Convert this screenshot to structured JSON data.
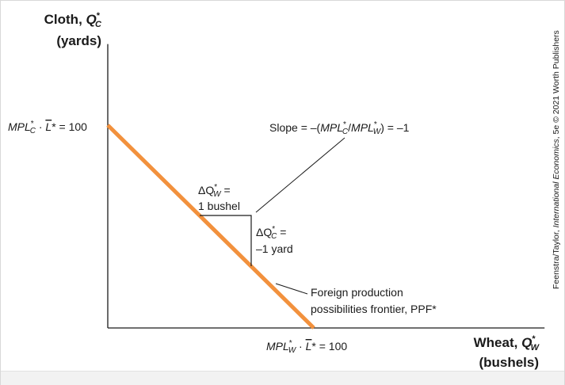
{
  "chart_data": {
    "type": "line",
    "title": "",
    "y_axis": {
      "name": "Cloth,",
      "symbol": "Q",
      "sup": "*",
      "sub": "C",
      "unit": "(yards)"
    },
    "x_axis": {
      "name": "Wheat,",
      "symbol": "Q",
      "sup": "*",
      "sub": "W",
      "unit": "(bushels)"
    },
    "y_intercept_label": {
      "mpl": "MPL",
      "sup": "*",
      "sub": "C",
      "dot": " · ",
      "l": "L",
      "tail": "* = 100"
    },
    "x_intercept_label": {
      "mpl": "MPL",
      "sup": "*",
      "sub": "W",
      "dot": " · ",
      "l": "L",
      "tail": "* = 100"
    },
    "slope_label": {
      "pre": "Slope = –(",
      "mpl1": "MPL",
      "sup1": "*",
      "sub1": "C",
      "slash": "/",
      "mpl2": "MPL",
      "sup2": "*",
      "sub2": "W",
      "post": ") = –1"
    },
    "delta_w": {
      "delta": "ΔQ",
      "sup": "*",
      "sub": "W",
      "eq": " =",
      "line2": "1 bushel"
    },
    "delta_c": {
      "delta": "ΔQ",
      "sup": "*",
      "sub": "C",
      "eq": " =",
      "line2": "–1 yard"
    },
    "ppf_label": {
      "line1": "Foreign production",
      "line2": "possibilities frontier, PPF*"
    },
    "credit_text": {
      "pre": "Feenstra/Taylor, ",
      "italic": "International Economics",
      "post": ", 5e © 2021 Worth Publishers"
    },
    "series": [
      {
        "x": [
          0,
          100
        ],
        "y": [
          100,
          0
        ]
      }
    ],
    "step_points": {
      "x": [
        40,
        41
      ],
      "y": [
        60,
        59
      ]
    },
    "xlim": [
      0,
      212
    ],
    "ylim": [
      0,
      140
    ],
    "grid": false,
    "colors": {
      "ppf": "#f2913d",
      "axis": "#1a1a1a"
    }
  }
}
